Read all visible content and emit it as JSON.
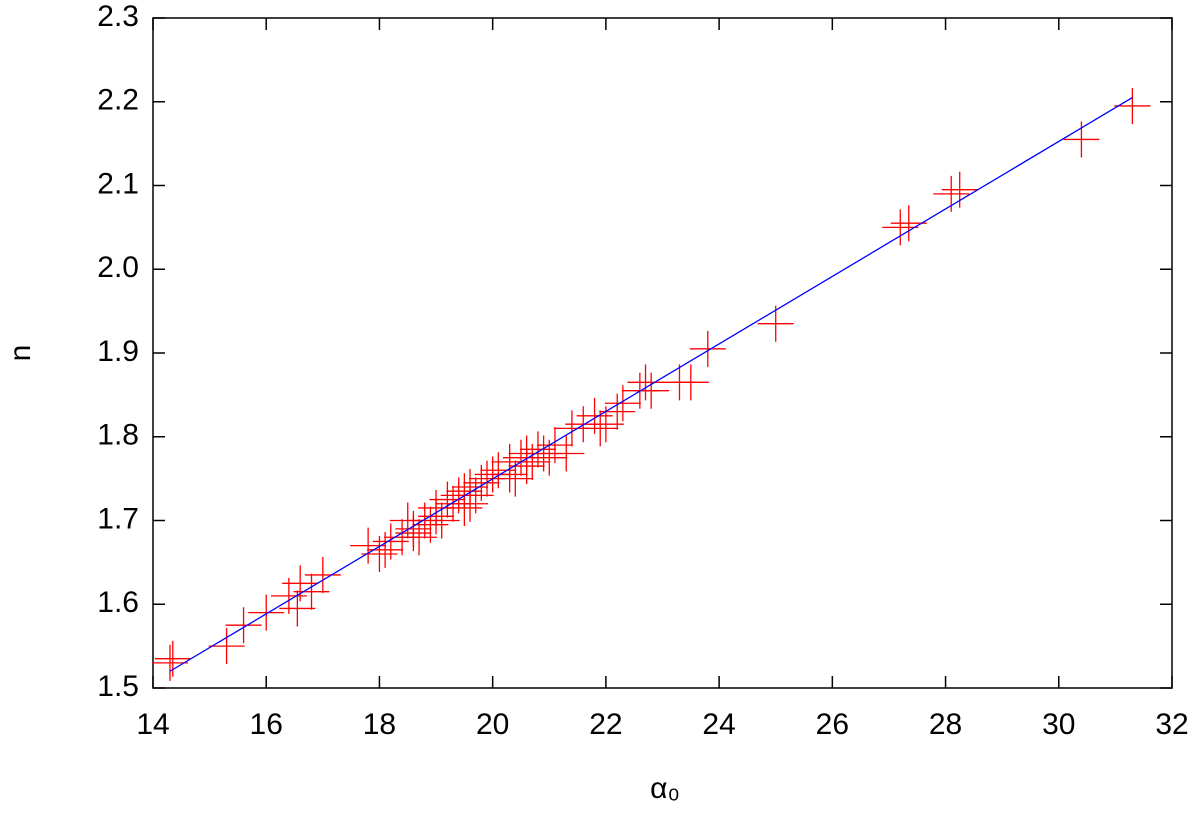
{
  "chart_data": {
    "type": "scatter",
    "xlabel": "α₀",
    "ylabel": "n",
    "xlim": [
      14,
      32
    ],
    "xticks": [
      14,
      16,
      18,
      20,
      22,
      24,
      26,
      28,
      30,
      32
    ],
    "ylim": [
      1.5,
      2.3
    ],
    "yticks": [
      1.5,
      1.6,
      1.7,
      1.8,
      1.9,
      {
        "value": 2,
        "label": "2.0"
      },
      2.1,
      2.2,
      2.3
    ],
    "grid": false,
    "series": [
      {
        "color": "#ff0000",
        "marker": "plus",
        "x": [
          14.3,
          14.35,
          15.3,
          15.6,
          16.0,
          16.4,
          16.55,
          16.6,
          16.8,
          17.0,
          17.8,
          18.0,
          18.1,
          18.2,
          18.4,
          18.5,
          18.6,
          18.6,
          18.7,
          18.8,
          18.9,
          19.0,
          19.0,
          19.1,
          19.2,
          19.3,
          19.4,
          19.5,
          19.5,
          19.6,
          19.6,
          19.7,
          19.8,
          19.9,
          20.0,
          20.1,
          20.3,
          20.3,
          20.4,
          20.5,
          20.6,
          20.6,
          20.7,
          20.8,
          20.9,
          21.0,
          21.1,
          21.3,
          21.4,
          21.6,
          21.8,
          21.9,
          22.0,
          22.2,
          22.3,
          22.6,
          22.7,
          22.8,
          23.3,
          23.5,
          23.8,
          25.0,
          27.2,
          27.35,
          28.1,
          28.25,
          30.4,
          31.3
        ],
        "values": [
          1.53,
          1.535,
          1.55,
          1.575,
          1.59,
          1.61,
          1.595,
          1.625,
          1.615,
          1.635,
          1.67,
          1.66,
          1.665,
          1.675,
          1.68,
          1.7,
          1.685,
          1.69,
          1.68,
          1.7,
          1.695,
          1.705,
          1.715,
          1.7,
          1.725,
          1.72,
          1.73,
          1.715,
          1.735,
          1.72,
          1.74,
          1.73,
          1.745,
          1.75,
          1.755,
          1.76,
          1.755,
          1.77,
          1.75,
          1.775,
          1.765,
          1.78,
          1.77,
          1.785,
          1.78,
          1.775,
          1.79,
          1.78,
          1.81,
          1.815,
          1.825,
          1.81,
          1.815,
          1.83,
          1.84,
          1.855,
          1.865,
          1.855,
          1.865,
          1.865,
          1.905,
          1.935,
          2.05,
          2.055,
          2.09,
          2.095,
          2.155,
          2.195
        ]
      },
      {
        "color": "#0000ff",
        "marker": "line",
        "x": [
          14.3,
          31.3
        ],
        "values": [
          1.52,
          2.205
        ]
      }
    ]
  }
}
